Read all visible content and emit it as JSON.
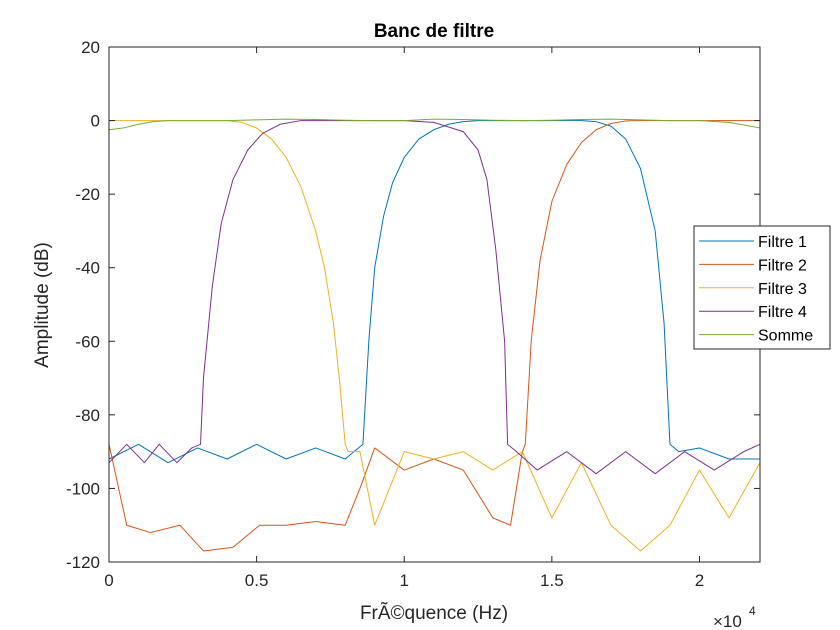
{
  "chart_data": {
    "type": "line",
    "title": "Banc de filtre",
    "xlabel": "FrÃ©quence (Hz)",
    "ylabel": "Amplitude (dB)",
    "xlim": [
      0,
      22050
    ],
    "ylim": [
      -120,
      20
    ],
    "x_ticks": [
      0,
      5000,
      10000,
      15000,
      20000
    ],
    "x_tick_labels": [
      "0",
      "0.5",
      "1",
      "1.5",
      "2"
    ],
    "x_exponent_label": "×10",
    "x_exponent_power": "4",
    "y_ticks": [
      -120,
      -100,
      -80,
      -60,
      -40,
      -20,
      0,
      20
    ],
    "y_tick_labels": [
      "-120",
      "-100",
      "-80",
      "-60",
      "-40",
      "-20",
      "0",
      "20"
    ],
    "grid": false,
    "legend_position": "east-outside-edge",
    "series": [
      {
        "name": "Filtre 1",
        "color": "#0072bd",
        "x": [
          0,
          1000,
          2000,
          3000,
          4000,
          5000,
          6000,
          7000,
          8000,
          8600,
          8800,
          9000,
          9300,
          9600,
          10000,
          10500,
          11000,
          11500,
          12000,
          12500,
          13000,
          13500,
          14000,
          15000,
          16000,
          16500,
          17000,
          17500,
          18000,
          18500,
          18800,
          19000,
          19300,
          20000,
          21000,
          22050
        ],
        "y": [
          -92,
          -88,
          -93,
          -89,
          -92,
          -88,
          -92,
          -89,
          -92,
          -88,
          -60,
          -40,
          -26,
          -17,
          -10,
          -5,
          -2.5,
          -1,
          -0.3,
          0,
          0,
          0,
          0,
          0,
          0,
          -0.3,
          -1.5,
          -5,
          -13,
          -30,
          -55,
          -88,
          -90,
          -89,
          -92,
          -92
        ]
      },
      {
        "name": "Filtre 2",
        "color": "#d95319",
        "x": [
          0,
          600,
          1400,
          2400,
          3200,
          4200,
          5100,
          6000,
          7000,
          8000,
          8500,
          9000,
          10000,
          11000,
          12000,
          13000,
          13600,
          14000,
          14100,
          14300,
          14600,
          15000,
          15500,
          16000,
          16500,
          17000,
          17500,
          18000,
          18500,
          19000,
          20000,
          21000,
          22050
        ],
        "y": [
          -88,
          -110,
          -112,
          -110,
          -117,
          -116,
          -110,
          -110,
          -109,
          -110,
          -100,
          -89,
          -95,
          -92,
          -95,
          -108,
          -110,
          -90,
          -88,
          -60,
          -38,
          -22,
          -12,
          -6,
          -2.5,
          -0.8,
          -0.1,
          0,
          0,
          0,
          0,
          0,
          0
        ]
      },
      {
        "name": "Filtre 3",
        "color": "#edb120",
        "x": [
          0,
          500,
          1000,
          1500,
          2000,
          2500,
          3000,
          3500,
          4000,
          4500,
          5000,
          5500,
          6000,
          6500,
          7000,
          7300,
          7600,
          7800,
          8000,
          8100,
          8500,
          9000,
          10000,
          11000,
          12000,
          13000,
          14000,
          15000,
          16000,
          17000,
          18000,
          19000,
          20000,
          21000,
          22050
        ],
        "y": [
          0,
          0,
          0,
          0,
          0,
          0,
          0,
          0,
          0,
          -0.5,
          -2,
          -5,
          -10,
          -18,
          -30,
          -40,
          -55,
          -70,
          -88,
          -90,
          -90,
          -110,
          -90,
          -92,
          -90,
          -95,
          -90,
          -108,
          -93,
          -110,
          -117,
          -110,
          -95,
          -108,
          -93
        ]
      },
      {
        "name": "Filtre 4",
        "color": "#7e2f8e",
        "x": [
          0,
          600,
          1200,
          1700,
          2300,
          2800,
          3100,
          3200,
          3500,
          3800,
          4200,
          4700,
          5200,
          5800,
          6500,
          7000,
          7500,
          8000,
          9000,
          10000,
          11000,
          12000,
          12500,
          12800,
          13100,
          13400,
          13500,
          13800,
          14500,
          15500,
          16500,
          17500,
          18500,
          19500,
          20500,
          21500,
          22050
        ],
        "y": [
          -93,
          -88,
          -93,
          -88,
          -93,
          -89,
          -88,
          -70,
          -45,
          -28,
          -16,
          -8,
          -3.5,
          -1,
          0,
          0,
          0,
          0,
          0,
          0,
          -0.5,
          -3,
          -8,
          -16,
          -35,
          -60,
          -88,
          -90,
          -95,
          -90,
          -96,
          -90,
          -96,
          -90,
          -95,
          -90,
          -88
        ]
      },
      {
        "name": "Somme",
        "color": "#77ac30",
        "x": [
          0,
          500,
          1000,
          1500,
          2000,
          3000,
          4000,
          5000,
          6000,
          7000,
          8000,
          9000,
          10000,
          11000,
          12000,
          13000,
          14000,
          15000,
          16000,
          17000,
          18000,
          19000,
          20000,
          21000,
          21500,
          22050
        ],
        "y": [
          -2.5,
          -2,
          -1,
          -0.3,
          0,
          0,
          0,
          0.2,
          0.4,
          0.3,
          0.1,
          0,
          0,
          0.4,
          0.3,
          0.1,
          0,
          0.1,
          0.3,
          0.4,
          0.2,
          0,
          0,
          -0.5,
          -1.2,
          -2
        ]
      }
    ]
  }
}
